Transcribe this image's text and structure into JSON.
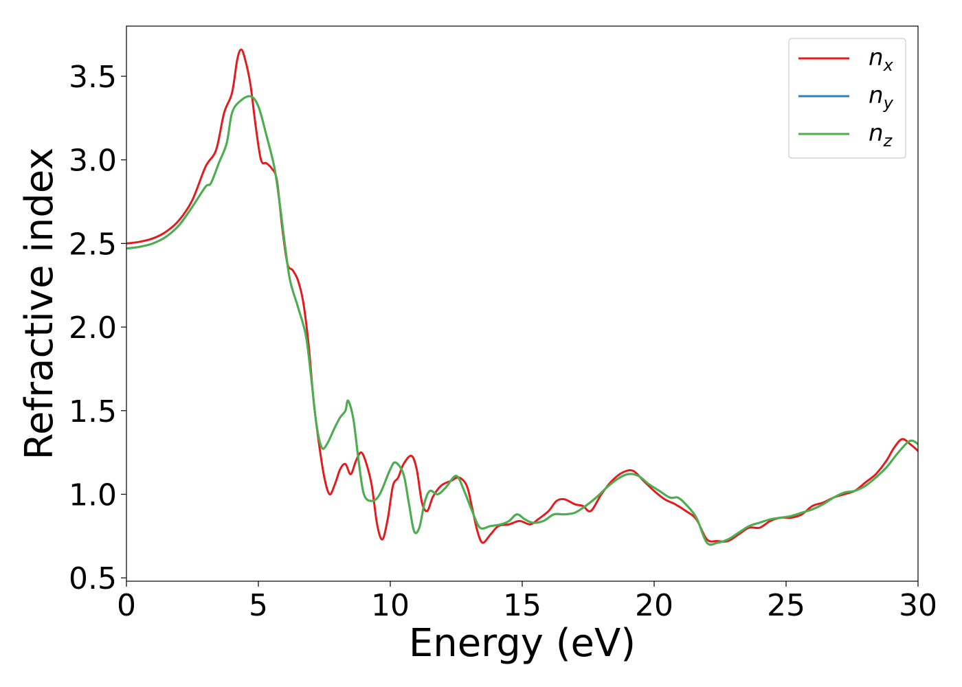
{
  "chart_data": {
    "type": "line",
    "xlabel": "Energy (eV)",
    "ylabel": "Refractive index",
    "xlim": [
      0,
      30
    ],
    "ylim": [
      0.48,
      3.8
    ],
    "xticks": [
      0,
      5,
      10,
      15,
      20,
      25,
      30
    ],
    "xtick_labels": [
      "0",
      "5",
      "10",
      "15",
      "20",
      "25",
      "30"
    ],
    "yticks": [
      0.5,
      1.0,
      1.5,
      2.0,
      2.5,
      3.0,
      3.5
    ],
    "ytick_labels": [
      "0.5",
      "1.0",
      "1.5",
      "2.0",
      "2.5",
      "3.0",
      "3.5"
    ],
    "grid": false,
    "legend_position": "top-right",
    "series": [
      {
        "name": "n",
        "subscript": "x",
        "color": "#e41a1c",
        "points": [
          [
            0,
            2.5
          ],
          [
            0.5,
            2.51
          ],
          [
            1,
            2.53
          ],
          [
            1.5,
            2.57
          ],
          [
            2,
            2.64
          ],
          [
            2.5,
            2.76
          ],
          [
            3,
            2.96
          ],
          [
            3.4,
            3.06
          ],
          [
            3.7,
            3.28
          ],
          [
            4,
            3.4
          ],
          [
            4.2,
            3.6
          ],
          [
            4.35,
            3.66
          ],
          [
            4.5,
            3.6
          ],
          [
            4.7,
            3.45
          ],
          [
            4.9,
            3.2
          ],
          [
            5.1,
            3.0
          ],
          [
            5.3,
            2.98
          ],
          [
            5.5,
            2.95
          ],
          [
            5.7,
            2.88
          ],
          [
            5.9,
            2.6
          ],
          [
            6.1,
            2.38
          ],
          [
            6.3,
            2.34
          ],
          [
            6.5,
            2.28
          ],
          [
            6.7,
            2.15
          ],
          [
            6.9,
            1.9
          ],
          [
            7.1,
            1.55
          ],
          [
            7.3,
            1.3
          ],
          [
            7.5,
            1.1
          ],
          [
            7.7,
            1.0
          ],
          [
            7.9,
            1.06
          ],
          [
            8.1,
            1.15
          ],
          [
            8.3,
            1.18
          ],
          [
            8.5,
            1.12
          ],
          [
            8.7,
            1.2
          ],
          [
            8.9,
            1.25
          ],
          [
            9.1,
            1.18
          ],
          [
            9.3,
            1.05
          ],
          [
            9.5,
            0.82
          ],
          [
            9.7,
            0.73
          ],
          [
            9.9,
            0.85
          ],
          [
            10.1,
            1.05
          ],
          [
            10.3,
            1.1
          ],
          [
            10.5,
            1.18
          ],
          [
            10.8,
            1.23
          ],
          [
            11.0,
            1.15
          ],
          [
            11.2,
            0.95
          ],
          [
            11.4,
            0.9
          ],
          [
            11.6,
            0.98
          ],
          [
            11.8,
            1.03
          ],
          [
            12.0,
            1.06
          ],
          [
            12.3,
            1.08
          ],
          [
            12.6,
            1.1
          ],
          [
            12.9,
            1.05
          ],
          [
            13.1,
            0.92
          ],
          [
            13.3,
            0.78
          ],
          [
            13.5,
            0.71
          ],
          [
            13.8,
            0.76
          ],
          [
            14.1,
            0.81
          ],
          [
            14.5,
            0.82
          ],
          [
            14.9,
            0.84
          ],
          [
            15.3,
            0.82
          ],
          [
            15.6,
            0.85
          ],
          [
            16.0,
            0.9
          ],
          [
            16.3,
            0.96
          ],
          [
            16.6,
            0.97
          ],
          [
            17.0,
            0.94
          ],
          [
            17.3,
            0.93
          ],
          [
            17.6,
            0.9
          ],
          [
            18.0,
            1.0
          ],
          [
            18.4,
            1.08
          ],
          [
            18.8,
            1.13
          ],
          [
            19.2,
            1.14
          ],
          [
            19.6,
            1.08
          ],
          [
            20.0,
            1.02
          ],
          [
            20.4,
            0.97
          ],
          [
            20.8,
            0.94
          ],
          [
            21.2,
            0.9
          ],
          [
            21.6,
            0.85
          ],
          [
            22.0,
            0.73
          ],
          [
            22.4,
            0.72
          ],
          [
            22.8,
            0.72
          ],
          [
            23.2,
            0.76
          ],
          [
            23.6,
            0.8
          ],
          [
            24.0,
            0.8
          ],
          [
            24.4,
            0.84
          ],
          [
            24.8,
            0.86
          ],
          [
            25.2,
            0.86
          ],
          [
            25.6,
            0.88
          ],
          [
            26.0,
            0.93
          ],
          [
            26.4,
            0.95
          ],
          [
            26.8,
            0.98
          ],
          [
            27.2,
            1.0
          ],
          [
            27.6,
            1.02
          ],
          [
            28.0,
            1.07
          ],
          [
            28.4,
            1.12
          ],
          [
            28.8,
            1.2
          ],
          [
            29.1,
            1.28
          ],
          [
            29.4,
            1.33
          ],
          [
            29.7,
            1.3
          ],
          [
            30.0,
            1.26
          ]
        ]
      },
      {
        "name": "n",
        "subscript": "y",
        "color": "#377eb8",
        "points": [
          [
            0,
            2.47
          ],
          [
            0.5,
            2.48
          ],
          [
            1,
            2.5
          ],
          [
            1.5,
            2.54
          ],
          [
            2,
            2.61
          ],
          [
            2.5,
            2.72
          ],
          [
            3,
            2.84
          ],
          [
            3.2,
            2.86
          ],
          [
            3.5,
            2.98
          ],
          [
            3.8,
            3.1
          ],
          [
            4.0,
            3.28
          ],
          [
            4.3,
            3.35
          ],
          [
            4.7,
            3.38
          ],
          [
            5.0,
            3.32
          ],
          [
            5.3,
            3.15
          ],
          [
            5.6,
            2.96
          ],
          [
            5.8,
            2.75
          ],
          [
            6.0,
            2.5
          ],
          [
            6.2,
            2.28
          ],
          [
            6.5,
            2.12
          ],
          [
            6.8,
            1.95
          ],
          [
            7.0,
            1.7
          ],
          [
            7.2,
            1.42
          ],
          [
            7.4,
            1.28
          ],
          [
            7.6,
            1.3
          ],
          [
            7.9,
            1.4
          ],
          [
            8.1,
            1.46
          ],
          [
            8.3,
            1.5
          ],
          [
            8.4,
            1.56
          ],
          [
            8.6,
            1.45
          ],
          [
            8.8,
            1.2
          ],
          [
            9.0,
            1.0
          ],
          [
            9.3,
            0.96
          ],
          [
            9.6,
            1.0
          ],
          [
            10.0,
            1.15
          ],
          [
            10.2,
            1.19
          ],
          [
            10.5,
            1.12
          ],
          [
            10.7,
            0.95
          ],
          [
            10.9,
            0.78
          ],
          [
            11.1,
            0.8
          ],
          [
            11.3,
            0.95
          ],
          [
            11.5,
            1.02
          ],
          [
            11.8,
            1.0
          ],
          [
            12.1,
            1.04
          ],
          [
            12.5,
            1.11
          ],
          [
            12.8,
            1.02
          ],
          [
            13.1,
            0.9
          ],
          [
            13.4,
            0.8
          ],
          [
            13.8,
            0.81
          ],
          [
            14.2,
            0.82
          ],
          [
            14.5,
            0.84
          ],
          [
            14.8,
            0.88
          ],
          [
            15.1,
            0.85
          ],
          [
            15.4,
            0.83
          ],
          [
            15.8,
            0.84
          ],
          [
            16.2,
            0.88
          ],
          [
            16.6,
            0.88
          ],
          [
            17.0,
            0.89
          ],
          [
            17.4,
            0.93
          ],
          [
            17.8,
            0.98
          ],
          [
            18.2,
            1.04
          ],
          [
            18.6,
            1.09
          ],
          [
            19.0,
            1.12
          ],
          [
            19.4,
            1.11
          ],
          [
            19.8,
            1.06
          ],
          [
            20.2,
            1.02
          ],
          [
            20.6,
            0.98
          ],
          [
            20.9,
            0.98
          ],
          [
            21.2,
            0.94
          ],
          [
            21.6,
            0.86
          ],
          [
            22.0,
            0.71
          ],
          [
            22.4,
            0.71
          ],
          [
            22.8,
            0.73
          ],
          [
            23.2,
            0.77
          ],
          [
            23.6,
            0.81
          ],
          [
            24.0,
            0.83
          ],
          [
            24.4,
            0.85
          ],
          [
            24.8,
            0.86
          ],
          [
            25.2,
            0.87
          ],
          [
            25.6,
            0.89
          ],
          [
            26.0,
            0.91
          ],
          [
            26.4,
            0.94
          ],
          [
            26.8,
            0.98
          ],
          [
            27.2,
            1.01
          ],
          [
            27.6,
            1.02
          ],
          [
            28.0,
            1.05
          ],
          [
            28.4,
            1.1
          ],
          [
            28.8,
            1.16
          ],
          [
            29.2,
            1.24
          ],
          [
            29.6,
            1.31
          ],
          [
            29.8,
            1.32
          ],
          [
            30.0,
            1.3
          ]
        ]
      },
      {
        "name": "n",
        "subscript": "z",
        "color": "#4daf4a",
        "points": [
          [
            0,
            2.47
          ],
          [
            0.5,
            2.48
          ],
          [
            1,
            2.5
          ],
          [
            1.5,
            2.54
          ],
          [
            2,
            2.61
          ],
          [
            2.5,
            2.72
          ],
          [
            3,
            2.84
          ],
          [
            3.2,
            2.86
          ],
          [
            3.5,
            2.98
          ],
          [
            3.8,
            3.1
          ],
          [
            4.0,
            3.28
          ],
          [
            4.3,
            3.35
          ],
          [
            4.7,
            3.38
          ],
          [
            5.0,
            3.32
          ],
          [
            5.3,
            3.15
          ],
          [
            5.6,
            2.96
          ],
          [
            5.8,
            2.75
          ],
          [
            6.0,
            2.5
          ],
          [
            6.2,
            2.28
          ],
          [
            6.5,
            2.12
          ],
          [
            6.8,
            1.95
          ],
          [
            7.0,
            1.7
          ],
          [
            7.2,
            1.42
          ],
          [
            7.4,
            1.28
          ],
          [
            7.6,
            1.3
          ],
          [
            7.9,
            1.4
          ],
          [
            8.1,
            1.46
          ],
          [
            8.3,
            1.5
          ],
          [
            8.4,
            1.56
          ],
          [
            8.6,
            1.45
          ],
          [
            8.8,
            1.2
          ],
          [
            9.0,
            1.0
          ],
          [
            9.3,
            0.96
          ],
          [
            9.6,
            1.0
          ],
          [
            10.0,
            1.15
          ],
          [
            10.2,
            1.19
          ],
          [
            10.5,
            1.12
          ],
          [
            10.7,
            0.95
          ],
          [
            10.9,
            0.78
          ],
          [
            11.1,
            0.8
          ],
          [
            11.3,
            0.95
          ],
          [
            11.5,
            1.02
          ],
          [
            11.8,
            1.0
          ],
          [
            12.1,
            1.04
          ],
          [
            12.5,
            1.11
          ],
          [
            12.8,
            1.02
          ],
          [
            13.1,
            0.9
          ],
          [
            13.4,
            0.8
          ],
          [
            13.8,
            0.81
          ],
          [
            14.2,
            0.82
          ],
          [
            14.5,
            0.84
          ],
          [
            14.8,
            0.88
          ],
          [
            15.1,
            0.85
          ],
          [
            15.4,
            0.83
          ],
          [
            15.8,
            0.84
          ],
          [
            16.2,
            0.88
          ],
          [
            16.6,
            0.88
          ],
          [
            17.0,
            0.89
          ],
          [
            17.4,
            0.93
          ],
          [
            17.8,
            0.98
          ],
          [
            18.2,
            1.04
          ],
          [
            18.6,
            1.09
          ],
          [
            19.0,
            1.12
          ],
          [
            19.4,
            1.11
          ],
          [
            19.8,
            1.06
          ],
          [
            20.2,
            1.02
          ],
          [
            20.6,
            0.98
          ],
          [
            20.9,
            0.98
          ],
          [
            21.2,
            0.94
          ],
          [
            21.6,
            0.86
          ],
          [
            22.0,
            0.71
          ],
          [
            22.4,
            0.71
          ],
          [
            22.8,
            0.73
          ],
          [
            23.2,
            0.77
          ],
          [
            23.6,
            0.81
          ],
          [
            24.0,
            0.83
          ],
          [
            24.4,
            0.85
          ],
          [
            24.8,
            0.86
          ],
          [
            25.2,
            0.87
          ],
          [
            25.6,
            0.89
          ],
          [
            26.0,
            0.91
          ],
          [
            26.4,
            0.94
          ],
          [
            26.8,
            0.98
          ],
          [
            27.2,
            1.01
          ],
          [
            27.6,
            1.02
          ],
          [
            28.0,
            1.05
          ],
          [
            28.4,
            1.1
          ],
          [
            28.8,
            1.16
          ],
          [
            29.2,
            1.24
          ],
          [
            29.6,
            1.31
          ],
          [
            29.8,
            1.32
          ],
          [
            30.0,
            1.3
          ]
        ]
      }
    ]
  }
}
